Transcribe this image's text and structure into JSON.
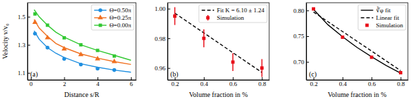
{
  "chart_data": [
    {
      "type": "scatter",
      "title": "(a)",
      "x_label": "Distance s/R",
      "y_label": "Velocity v/v₀",
      "xlim": [
        -0.2,
        6.3
      ],
      "ylim": [
        1.05,
        1.6
      ],
      "xticks": [
        0,
        2,
        4,
        6
      ],
      "yticks": [
        1.1,
        1.3,
        1.5
      ],
      "legend": "upper right",
      "series": [
        {
          "name": "Θ=0.50π",
          "color": "#1f8fe0",
          "marker": "circle",
          "line_style": "solid",
          "x": [
            0.25,
            1,
            2,
            3,
            4,
            5
          ],
          "values": [
            1.38,
            1.28,
            1.2,
            1.16,
            1.13,
            1.12
          ],
          "fit_x": [
            0.2,
            0.5,
            1,
            1.5,
            2,
            3,
            4,
            5,
            6
          ],
          "fit_values": [
            1.4,
            1.34,
            1.28,
            1.24,
            1.21,
            1.165,
            1.14,
            1.12,
            1.105
          ]
        },
        {
          "name": "Θ=0.25π",
          "color": "#f07020",
          "marker": "triangle",
          "line_style": "solid",
          "x": [
            0.25,
            1,
            2,
            3,
            4,
            5
          ],
          "values": [
            1.46,
            1.35,
            1.27,
            1.23,
            1.2,
            1.18
          ],
          "fit_x": [
            0.2,
            0.5,
            1,
            1.5,
            2,
            3,
            4,
            5,
            6
          ],
          "fit_values": [
            1.48,
            1.42,
            1.36,
            1.31,
            1.28,
            1.235,
            1.205,
            1.18,
            1.16
          ]
        },
        {
          "name": "Θ=0.00π",
          "color": "#32c832",
          "marker": "square",
          "line_style": "solid",
          "x": [
            0.25,
            1,
            2,
            3,
            4,
            5
          ],
          "values": [
            1.52,
            1.44,
            1.35,
            1.3,
            1.26,
            1.22
          ],
          "fit_x": [
            0.2,
            0.5,
            1,
            1.5,
            2,
            3,
            4,
            5,
            6
          ],
          "fit_values": [
            1.55,
            1.5,
            1.44,
            1.39,
            1.355,
            1.3,
            1.26,
            1.225,
            1.19
          ]
        }
      ]
    },
    {
      "type": "scatter",
      "title": "(b)",
      "x_label": "Volume fraction in %",
      "xlim": [
        0.15,
        0.85
      ],
      "ylim": [
        0.952,
        1.004
      ],
      "xticks": [
        0.2,
        0.4,
        0.6,
        0.8
      ],
      "yticks": [
        0.96,
        0.98,
        {
          "value": 1,
          "label": "1.00"
        }
      ],
      "legend": "upper right",
      "series": [
        {
          "name": "Fit K = 6.10 ± 1.24",
          "type": "line",
          "color": "#000000",
          "line_style": "dashed",
          "x": [
            0.2,
            0.8
          ],
          "values": [
            0.997,
            0.957
          ]
        },
        {
          "name": "Simulation",
          "type": "scatter",
          "color": "#e8101a",
          "marker": "square",
          "x": [
            0.2,
            0.4,
            0.6,
            0.8
          ],
          "values": [
            0.995,
            0.98,
            0.964,
            0.96
          ],
          "errors": [
            0.006,
            0.006,
            0.006,
            0.006
          ]
        }
      ]
    },
    {
      "type": "scatter",
      "title": "(c)",
      "x_label": "Volume fraction in %",
      "xlim": [
        0.15,
        0.85
      ],
      "ylim": [
        0.665,
        0.815
      ],
      "xticks": [
        0.2,
        0.4,
        0.6,
        0.8
      ],
      "yticks": [
        {
          "value": 0.7,
          "label": "0.70"
        },
        0.75,
        {
          "value": 0.8,
          "label": "0.80"
        }
      ],
      "legend": "upper right",
      "series": [
        {
          "name": "∛φ fit",
          "type": "line",
          "color": "#000000",
          "line_style": "solid",
          "x": [
            0.2,
            0.3,
            0.4,
            0.5,
            0.6,
            0.7,
            0.8
          ],
          "values": [
            0.802,
            0.772,
            0.749,
            0.728,
            0.71,
            0.693,
            0.678
          ]
        },
        {
          "name": "Linear fit",
          "type": "line",
          "color": "#000000",
          "line_style": "dashed",
          "x": [
            0.2,
            0.8
          ],
          "values": [
            0.797,
            0.683
          ]
        },
        {
          "name": "Simulation",
          "type": "scatter",
          "color": "#e8101a",
          "marker": "square",
          "x": [
            0.2,
            0.4,
            0.6,
            0.8
          ],
          "values": [
            0.803,
            0.748,
            0.709,
            0.679
          ]
        }
      ]
    }
  ]
}
